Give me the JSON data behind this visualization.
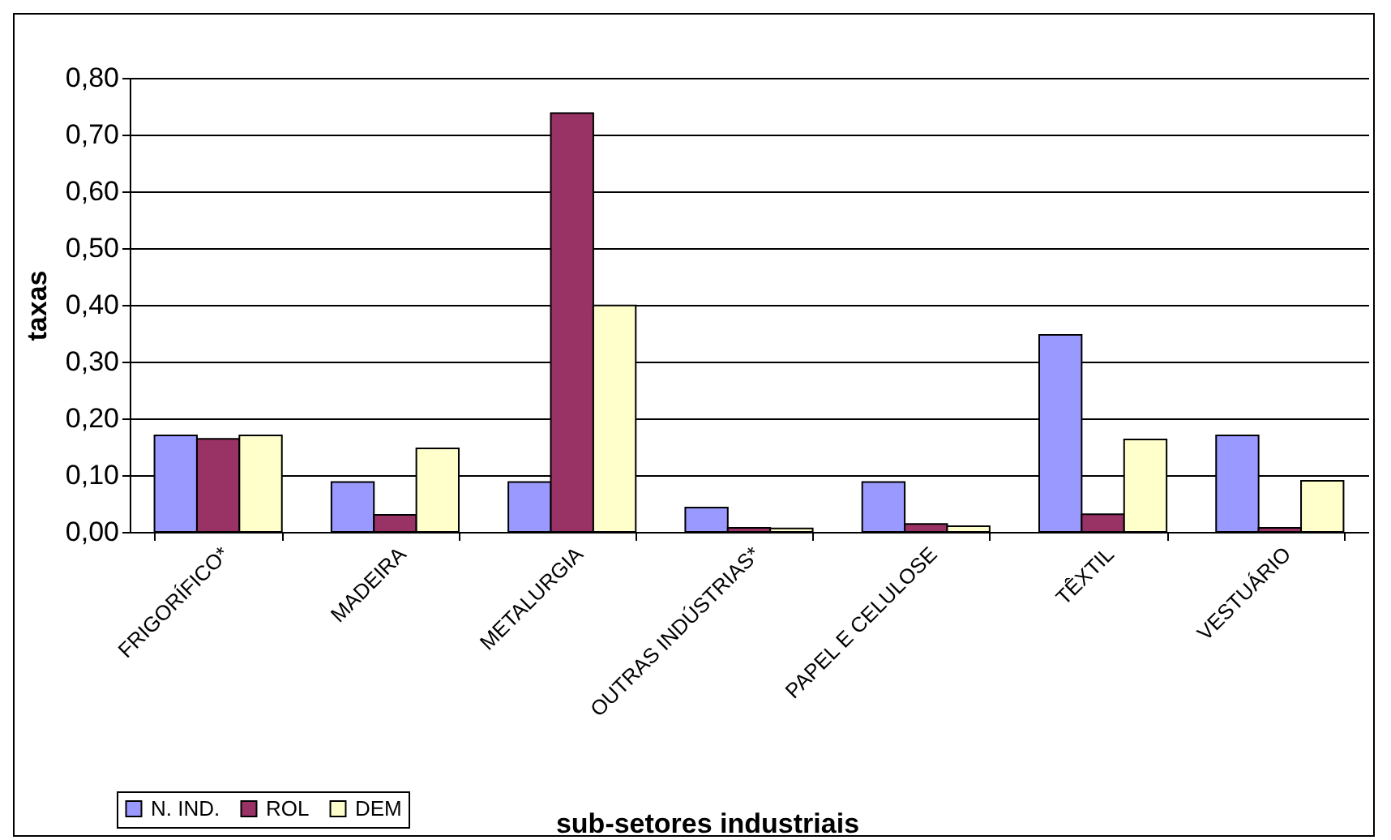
{
  "chart_data": {
    "type": "bar",
    "xlabel": "sub-setores industriais",
    "ylabel": "taxas",
    "categories": [
      "FRIGORÍFICO*",
      "MADEIRA",
      "METALURGIA",
      "OUTRAS INDÚSTRIAS*",
      "PAPEL E CELULOSE",
      "TÊXTIL",
      "VESTUÁRIO"
    ],
    "series": [
      {
        "name": "N. IND.",
        "color": "#9999ff",
        "values": [
          0.17,
          0.088,
          0.088,
          0.043,
          0.088,
          0.347,
          0.17
        ]
      },
      {
        "name": "ROL",
        "color": "#993366",
        "values": [
          0.164,
          0.03,
          0.738,
          0.007,
          0.014,
          0.031,
          0.007
        ]
      },
      {
        "name": "DEM",
        "color": "#ffffcc",
        "values": [
          0.17,
          0.147,
          0.399,
          0.006,
          0.01,
          0.163,
          0.09
        ]
      }
    ],
    "ylim": [
      0,
      0.8
    ],
    "yticks": [
      {
        "value": 0,
        "label": "0,00"
      },
      {
        "value": 0.1,
        "label": "0,10"
      },
      {
        "value": 0.2,
        "label": "0,20"
      },
      {
        "value": 0.3,
        "label": "0,30"
      },
      {
        "value": 0.4,
        "label": "0,40"
      },
      {
        "value": 0.5,
        "label": "0,50"
      },
      {
        "value": 0.6,
        "label": "0,60"
      },
      {
        "value": 0.7,
        "label": "0,70"
      },
      {
        "value": 0.8,
        "label": "0,80"
      }
    ],
    "grid": "y",
    "legend": "bottom left"
  }
}
